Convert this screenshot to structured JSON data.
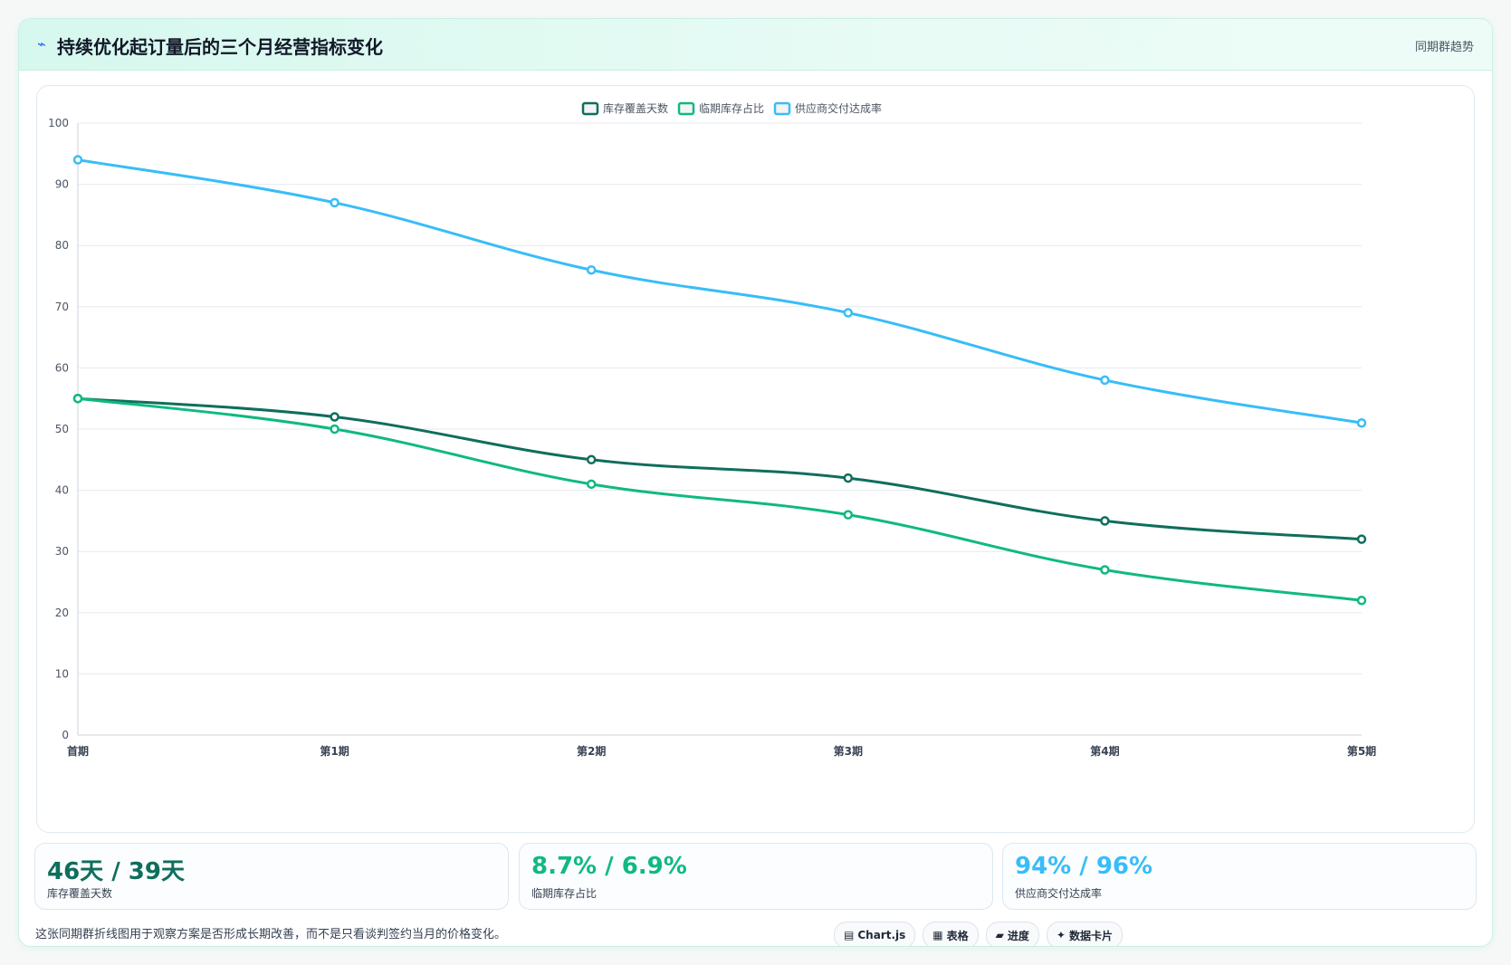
{
  "header": {
    "icon": "⌁",
    "title": "持续优化起订量后的三个月经营指标变化",
    "subtitle": "同期群趋势"
  },
  "chart_data": {
    "type": "line",
    "categories": [
      "首期",
      "第1期",
      "第2期",
      "第3期",
      "第4期",
      "第5期"
    ],
    "ylim": [
      0,
      100
    ],
    "yticks": [
      0,
      10,
      20,
      30,
      40,
      50,
      60,
      70,
      80,
      90,
      100
    ],
    "grid": true,
    "legend_position": "top-center",
    "series": [
      {
        "name": "库存覆盖天数",
        "color": "#0f6e5c",
        "values": [
          55,
          52,
          45,
          42,
          35,
          32
        ]
      },
      {
        "name": "临期库存占比",
        "color": "#10b981",
        "values": [
          55,
          50,
          41,
          36,
          27,
          22
        ]
      },
      {
        "name": "供应商交付达成率",
        "color": "#38bdf8",
        "values": [
          94,
          87,
          76,
          69,
          58,
          51
        ]
      }
    ]
  },
  "stats": [
    {
      "value": "46天 / 39天",
      "label": "库存覆盖天数",
      "color": "#0f6e5c"
    },
    {
      "value": "8.7% / 6.9%",
      "label": "临期库存占比",
      "color": "#10b981"
    },
    {
      "value": "94% / 96%",
      "label": "供应商交付达成率",
      "color": "#38bdf8"
    }
  ],
  "footnote": "这张同期群折线图用于观察方案是否形成长期改善，而不是只看谈判签约当月的价格变化。",
  "pills": [
    {
      "icon": "▤",
      "label": "Chart.js"
    },
    {
      "icon": "▦",
      "label": "表格"
    },
    {
      "icon": "▰",
      "label": "进度"
    },
    {
      "icon": "✦",
      "label": "数据卡片"
    }
  ]
}
